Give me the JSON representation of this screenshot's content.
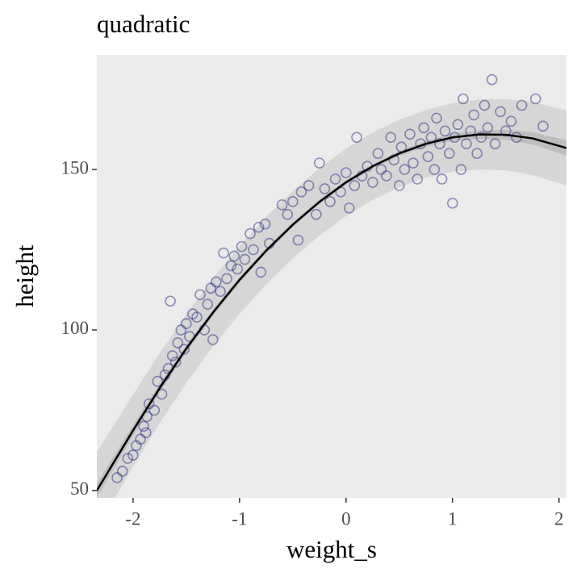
{
  "chart_data": {
    "type": "scatter",
    "title": "quadratic",
    "x_label": "weight_s",
    "y_label": "height",
    "xlim": [
      -2.34,
      2.07
    ],
    "ylim": [
      47.7,
      185.7
    ],
    "xticks": [
      -2,
      -1,
      0,
      1,
      2
    ],
    "yticks": [
      50,
      100,
      150
    ],
    "background": "#ebebeb",
    "points": {
      "color": "#1a1a80",
      "x": [
        -2.15,
        -2.1,
        -2.05,
        -2.0,
        -1.97,
        -1.93,
        -1.9,
        -1.88,
        -1.87,
        -1.85,
        -1.8,
        -1.77,
        -1.73,
        -1.7,
        -1.67,
        -1.65,
        -1.63,
        -1.6,
        -1.58,
        -1.55,
        -1.52,
        -1.5,
        -1.47,
        -1.44,
        -1.4,
        -1.37,
        -1.33,
        -1.3,
        -1.27,
        -1.25,
        -1.22,
        -1.18,
        -1.15,
        -1.12,
        -1.08,
        -1.05,
        -1.02,
        -0.98,
        -0.95,
        -0.9,
        -0.87,
        -0.82,
        -0.8,
        -0.76,
        -0.72,
        -0.6,
        -0.55,
        -0.5,
        -0.45,
        -0.42,
        -0.35,
        -0.28,
        -0.25,
        -0.2,
        -0.15,
        -0.1,
        -0.05,
        0.0,
        0.03,
        0.08,
        0.1,
        0.15,
        0.2,
        0.25,
        0.3,
        0.33,
        0.38,
        0.42,
        0.45,
        0.5,
        0.52,
        0.55,
        0.6,
        0.63,
        0.67,
        0.7,
        0.73,
        0.77,
        0.8,
        0.83,
        0.85,
        0.88,
        0.9,
        0.93,
        0.97,
        1.0,
        1.02,
        1.05,
        1.08,
        1.1,
        1.13,
        1.17,
        1.2,
        1.23,
        1.27,
        1.3,
        1.33,
        1.37,
        1.4,
        1.45,
        1.5,
        1.55,
        1.6,
        1.65,
        1.78,
        1.85
      ],
      "y": [
        54,
        56,
        60,
        61,
        64,
        66,
        70,
        68,
        73,
        77,
        75,
        84,
        80,
        86,
        88,
        109,
        92,
        90,
        96,
        100,
        94,
        102,
        98,
        105,
        104,
        111,
        100,
        108,
        113,
        97,
        115,
        112,
        124,
        116,
        120,
        123,
        119,
        126,
        122,
        130,
        125,
        132,
        118,
        133,
        127,
        139,
        136,
        140,
        128,
        143,
        145,
        136,
        152,
        144,
        140,
        147,
        143,
        149,
        138,
        145,
        160,
        148,
        151,
        146,
        155,
        150,
        148,
        160,
        153,
        145,
        157,
        150,
        161,
        152,
        147,
        158,
        163,
        154,
        160,
        150,
        166,
        158,
        147,
        162,
        155,
        139.5,
        160,
        164,
        150,
        172,
        158,
        162,
        167,
        155,
        160,
        170,
        163,
        178,
        158,
        168,
        162,
        165,
        160,
        170,
        172,
        163.5
      ]
    },
    "fit": {
      "line_color": "#000000",
      "mean_band_color": "#bebebe",
      "pred_band_color": "#d6d6d6",
      "x": [
        -2.34,
        -2.0,
        -1.75,
        -1.5,
        -1.25,
        -1.0,
        -0.75,
        -0.5,
        -0.25,
        0,
        0.25,
        0.5,
        0.75,
        1,
        1.25,
        1.5,
        1.75,
        2.07
      ],
      "mean": [
        50.0,
        68.7,
        81.9,
        94.2,
        105.4,
        115.6,
        124.7,
        132.8,
        139.9,
        146.0,
        151.0,
        155.0,
        158.0,
        160.0,
        160.9,
        160.8,
        159.7,
        156.7
      ],
      "mean_lower": [
        47.8,
        67.0,
        80.5,
        93.0,
        104.4,
        114.7,
        123.9,
        132.0,
        139.2,
        145.3,
        150.3,
        154.2,
        157.1,
        158.9,
        159.6,
        159.2,
        157.8,
        154.3
      ],
      "mean_upper": [
        52.2,
        70.4,
        83.3,
        95.4,
        106.4,
        116.5,
        125.5,
        133.6,
        140.6,
        146.7,
        151.7,
        155.8,
        158.9,
        161.1,
        162.2,
        162.4,
        161.6,
        159.1
      ],
      "pred_lower": [
        38.0,
        57.5,
        71.0,
        83.5,
        94.8,
        105.0,
        114.2,
        122.3,
        129.4,
        135.5,
        140.5,
        144.5,
        147.5,
        149.3,
        150.0,
        149.7,
        148.3,
        145.0
      ],
      "pred_upper": [
        62.0,
        79.9,
        92.8,
        104.9,
        116.0,
        126.2,
        135.2,
        143.3,
        150.4,
        156.5,
        161.5,
        165.5,
        168.5,
        170.7,
        171.8,
        171.9,
        171.1,
        168.4
      ]
    }
  }
}
